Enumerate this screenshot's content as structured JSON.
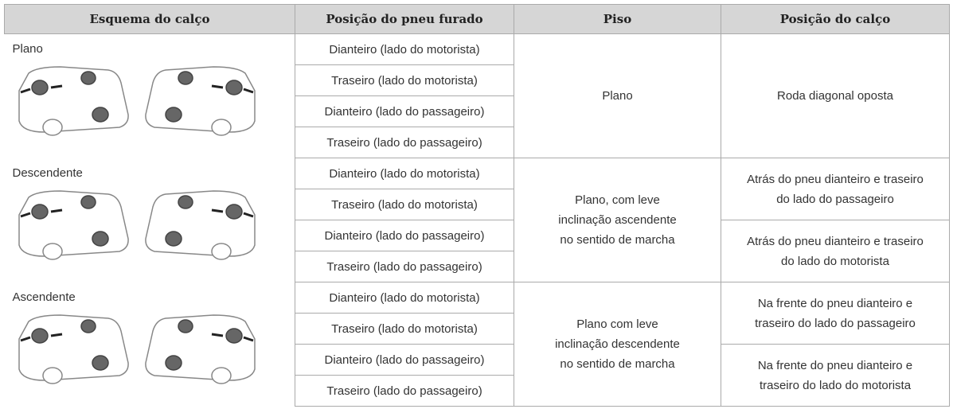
{
  "header": {
    "columns": [
      "Esquema do calço",
      "Posição do pneu furado",
      "Piso",
      "Posição do calço"
    ]
  },
  "groups": [
    {
      "label": "Plano",
      "positions": [
        "Dianteiro (lado do motorista)",
        "Traseiro (lado do motorista)",
        "Dianteiro (lado do passageiro)",
        "Traseiro (lado do passageiro)"
      ],
      "floor": [
        "Plano"
      ],
      "chock": [
        [
          "Roda diagonal oposta"
        ]
      ]
    },
    {
      "label": "Descendente",
      "positions": [
        "Dianteiro (lado do motorista)",
        "Traseiro (lado do motorista)",
        "Dianteiro (lado do passageiro)",
        "Traseiro (lado do passageiro)"
      ],
      "floor": [
        "Plano, com leve",
        "inclinação ascendente",
        "no sentido de marcha"
      ],
      "chock": [
        [
          "Atrás do pneu dianteiro e traseiro",
          "do lado do passageiro"
        ],
        [
          "Atrás do pneu dianteiro e traseiro",
          "do lado do motorista"
        ]
      ]
    },
    {
      "label": "Ascendente",
      "positions": [
        "Dianteiro (lado do motorista)",
        "Traseiro (lado do motorista)",
        "Dianteiro (lado do passageiro)",
        "Traseiro (lado do passageiro)"
      ],
      "floor": [
        "Plano com leve",
        "inclinação descendente",
        "no sentido de marcha"
      ],
      "chock": [
        [
          "Na frente do pneu dianteiro e",
          "traseiro do lado do passageiro"
        ],
        [
          "Na frente do pneu dianteiro e",
          "traseiro do lado do motorista"
        ]
      ]
    }
  ]
}
